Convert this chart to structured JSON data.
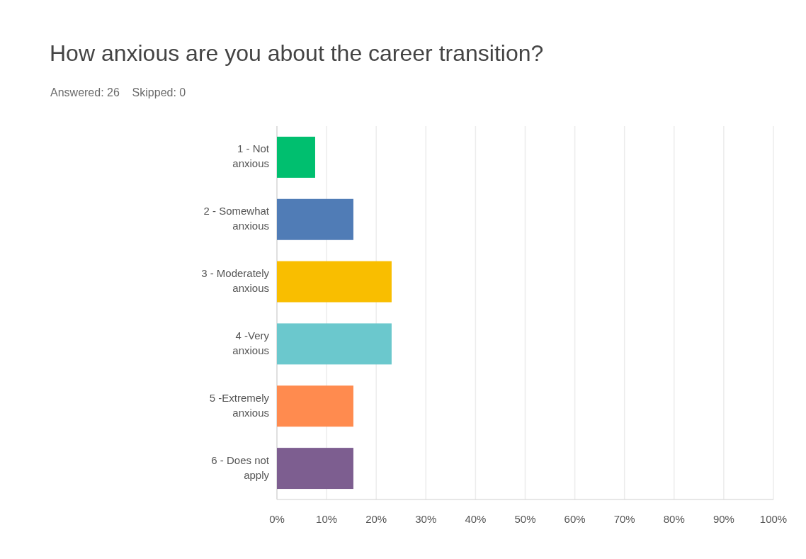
{
  "chart_data": {
    "type": "bar",
    "orientation": "horizontal",
    "title": "How anxious are you about the career transition?",
    "subtitle": "Answered: 26    Skipped: 0",
    "categories": [
      "1 - Not anxious",
      "2 - Somewhat anxious",
      "3 - Moderately anxious",
      "4 -Very anxious",
      "5 -Extremely anxious",
      "6 - Does not apply"
    ],
    "values": [
      7.7,
      15.4,
      23.1,
      23.1,
      15.4,
      15.4
    ],
    "colors": [
      "#00bf6f",
      "#507cb6",
      "#f9be00",
      "#6bc8cd",
      "#ff8b4f",
      "#7d5e90"
    ],
    "xlim": [
      0,
      100
    ],
    "xticks": [
      {
        "value": 0,
        "label": "0%"
      },
      {
        "value": 10,
        "label": "10%"
      },
      {
        "value": 20,
        "label": "20%"
      },
      {
        "value": 30,
        "label": "30%"
      },
      {
        "value": 40,
        "label": "40%"
      },
      {
        "value": 50,
        "label": "50%"
      },
      {
        "value": 60,
        "label": "60%"
      },
      {
        "value": 70,
        "label": "70%"
      },
      {
        "value": 80,
        "label": "80%"
      },
      {
        "value": 90,
        "label": "90%"
      },
      {
        "value": 100,
        "label": "100%"
      }
    ],
    "grid": "x"
  }
}
